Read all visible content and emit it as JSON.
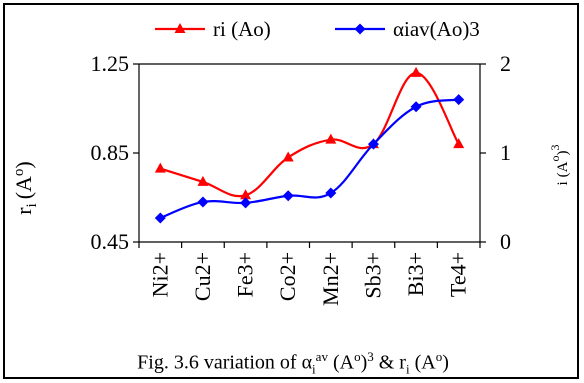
{
  "chart_data": {
    "type": "line",
    "categories": [
      "Ni2+",
      "Cu2+",
      "Fe3+",
      "Co2+",
      "Mn2+",
      "Sb3+",
      "Bi3+",
      "Te4+"
    ],
    "series": [
      {
        "name": "ri (Ao)",
        "axis": "left",
        "color": "#ff0000",
        "marker": "triangle",
        "values": [
          0.78,
          0.72,
          0.66,
          0.83,
          0.91,
          0.89,
          1.21,
          0.89
        ]
      },
      {
        "name": "αiav(Ao)3",
        "axis": "right",
        "color": "#0000ff",
        "marker": "diamond",
        "values": [
          0.27,
          0.45,
          0.44,
          0.52,
          0.55,
          1.1,
          1.52,
          1.6
        ]
      }
    ],
    "y_left": {
      "min": 0.45,
      "max": 1.25,
      "ticks": [
        "0.45",
        "0.85",
        "1.25"
      ],
      "tick_values": [
        0.45,
        0.85,
        1.25
      ]
    },
    "y_right": {
      "min": 0,
      "max": 2,
      "ticks": [
        "0",
        "1",
        "2"
      ],
      "tick_values": [
        0,
        1,
        2
      ]
    },
    "legend_position": "top",
    "grid": false
  },
  "labels": {
    "y_left_main": "r",
    "y_left_sub": "i",
    "y_left_unit": "(A",
    "y_left_unit_sup": "o",
    "y_left_close": ")",
    "y_right_main": "i",
    "y_right_unit": "(A",
    "y_right_unit_sup": "o",
    "y_right_close": ")",
    "y_right_exp": "3"
  },
  "caption": {
    "prefix": "Fig. 3.6 variation of α",
    "sub": "i",
    "sup": "av",
    "mid": " (A",
    "mid_sup": "o",
    "mid2": ")",
    "mid2_sup": "3",
    "amp": " & r",
    "amp_sub": "i",
    "end": " (A",
    "end_sup": "o",
    "end_close": ")"
  }
}
